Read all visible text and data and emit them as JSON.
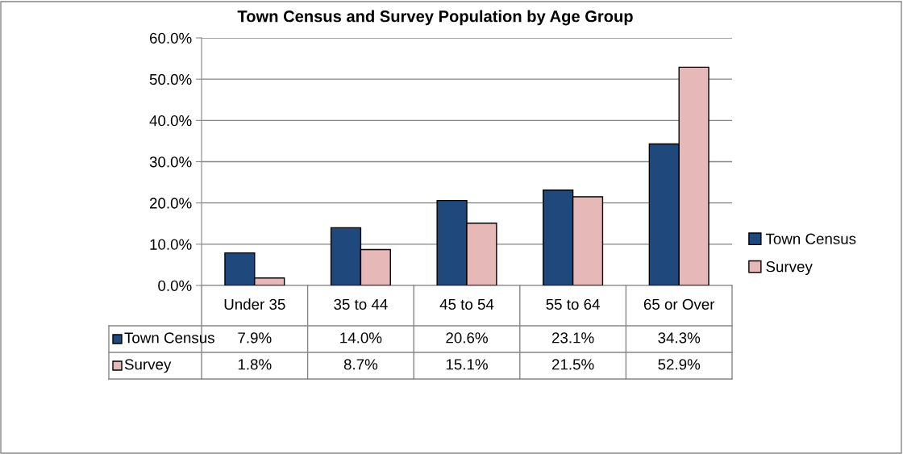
{
  "chart_data": {
    "type": "bar",
    "title": "Town Census and Survey Population by Age Group",
    "categories": [
      "Under 35",
      "35 to 44",
      "45 to 54",
      "55 to 64",
      "65 or Over"
    ],
    "series": [
      {
        "name": "Town Census",
        "color": "#1f497d",
        "values": [
          7.9,
          14.0,
          20.6,
          23.1,
          34.3
        ],
        "value_labels": [
          "7.9%",
          "14.0%",
          "20.6%",
          "23.1%",
          "34.3%"
        ]
      },
      {
        "name": "Survey",
        "color": "#e6b9b8",
        "values": [
          1.8,
          8.7,
          15.1,
          21.5,
          52.9
        ],
        "value_labels": [
          "1.8%",
          "8.7%",
          "15.1%",
          "21.5%",
          "52.9%"
        ]
      }
    ],
    "ylim": [
      0,
      60
    ],
    "yticks": [
      {
        "value": 0,
        "label": "0.0%"
      },
      {
        "value": 10,
        "label": "10.0%"
      },
      {
        "value": 20,
        "label": "20.0%"
      },
      {
        "value": 30,
        "label": "30.0%"
      },
      {
        "value": 40,
        "label": "40.0%"
      },
      {
        "value": 50,
        "label": "50.0%"
      },
      {
        "value": 60,
        "label": "60.0%"
      }
    ],
    "grid": "y",
    "legend": "right"
  }
}
